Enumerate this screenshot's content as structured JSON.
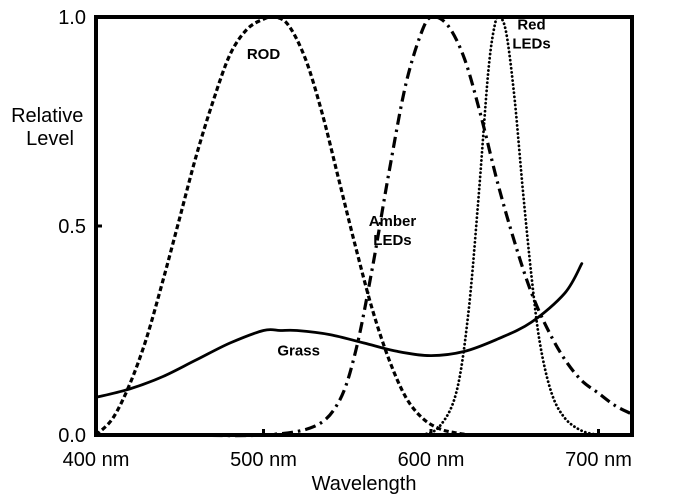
{
  "chart_data": {
    "type": "line",
    "xlabel": "Wavelength",
    "ylabel": [
      "Relative",
      "Level"
    ],
    "xlim": [
      400,
      720
    ],
    "ylim": [
      0,
      1
    ],
    "x_ticks": [
      {
        "value": 400,
        "label": "400 nm"
      },
      {
        "value": 500,
        "label": "500 nm"
      },
      {
        "value": 600,
        "label": "600 nm"
      },
      {
        "value": 700,
        "label": "700 nm"
      }
    ],
    "y_ticks": [
      {
        "value": 0,
        "label": "0.0"
      },
      {
        "value": 0.5,
        "label": "0.5"
      },
      {
        "value": 1,
        "label": "1.0"
      }
    ],
    "grid": false,
    "legend": "none",
    "series": [
      {
        "name": "ROD",
        "style": "dashed",
        "x": [
          400,
          410,
          420,
          430,
          440,
          450,
          460,
          470,
          480,
          490,
          500,
          507,
          515,
          525,
          535,
          545,
          555,
          565,
          575,
          585,
          595,
          605,
          615,
          625,
          635
        ],
        "y": [
          0.0,
          0.04,
          0.12,
          0.23,
          0.37,
          0.52,
          0.67,
          0.8,
          0.91,
          0.97,
          0.995,
          1.0,
          0.98,
          0.9,
          0.77,
          0.61,
          0.45,
          0.3,
          0.18,
          0.09,
          0.04,
          0.015,
          0.005,
          0.0,
          0.0
        ]
      },
      {
        "name": "Amber LEDs",
        "style": "dash-dot",
        "x": [
          455,
          500,
          530,
          545,
          555,
          565,
          575,
          585,
          595,
          601,
          610,
          620,
          630,
          640,
          650,
          660,
          670,
          680,
          690,
          700,
          710,
          720
        ],
        "y": [
          0.0,
          0.0,
          0.02,
          0.08,
          0.2,
          0.4,
          0.63,
          0.84,
          0.97,
          1.0,
          0.98,
          0.9,
          0.76,
          0.6,
          0.46,
          0.34,
          0.25,
          0.18,
          0.13,
          0.1,
          0.07,
          0.05
        ]
      },
      {
        "name": "Red LEDs",
        "style": "dotted",
        "x": [
          595,
          605,
          615,
          622,
          628,
          634,
          638,
          641,
          645,
          650,
          655,
          660,
          665,
          672,
          680,
          690,
          700
        ],
        "y": [
          0.0,
          0.02,
          0.1,
          0.28,
          0.55,
          0.86,
          0.98,
          1.0,
          0.96,
          0.8,
          0.58,
          0.38,
          0.22,
          0.1,
          0.04,
          0.01,
          0.0
        ]
      },
      {
        "name": "Grass",
        "style": "solid",
        "x": [
          400,
          420,
          440,
          460,
          480,
          500,
          510,
          520,
          540,
          560,
          580,
          600,
          620,
          640,
          660,
          680,
          690
        ],
        "y": [
          0.09,
          0.11,
          0.14,
          0.18,
          0.22,
          0.25,
          0.25,
          0.25,
          0.24,
          0.22,
          0.2,
          0.19,
          0.2,
          0.23,
          0.27,
          0.34,
          0.41
        ]
      }
    ],
    "annotations": [
      {
        "lines": [
          "ROD"
        ],
        "x": 500,
        "y": 0.9
      },
      {
        "lines": [
          "Amber",
          "LEDs"
        ],
        "x": 577,
        "y": 0.5
      },
      {
        "lines": [
          "Red",
          "LEDs"
        ],
        "x": 660,
        "y": 0.97
      },
      {
        "lines": [
          "Grass"
        ],
        "x": 521,
        "y": 0.19
      }
    ]
  }
}
